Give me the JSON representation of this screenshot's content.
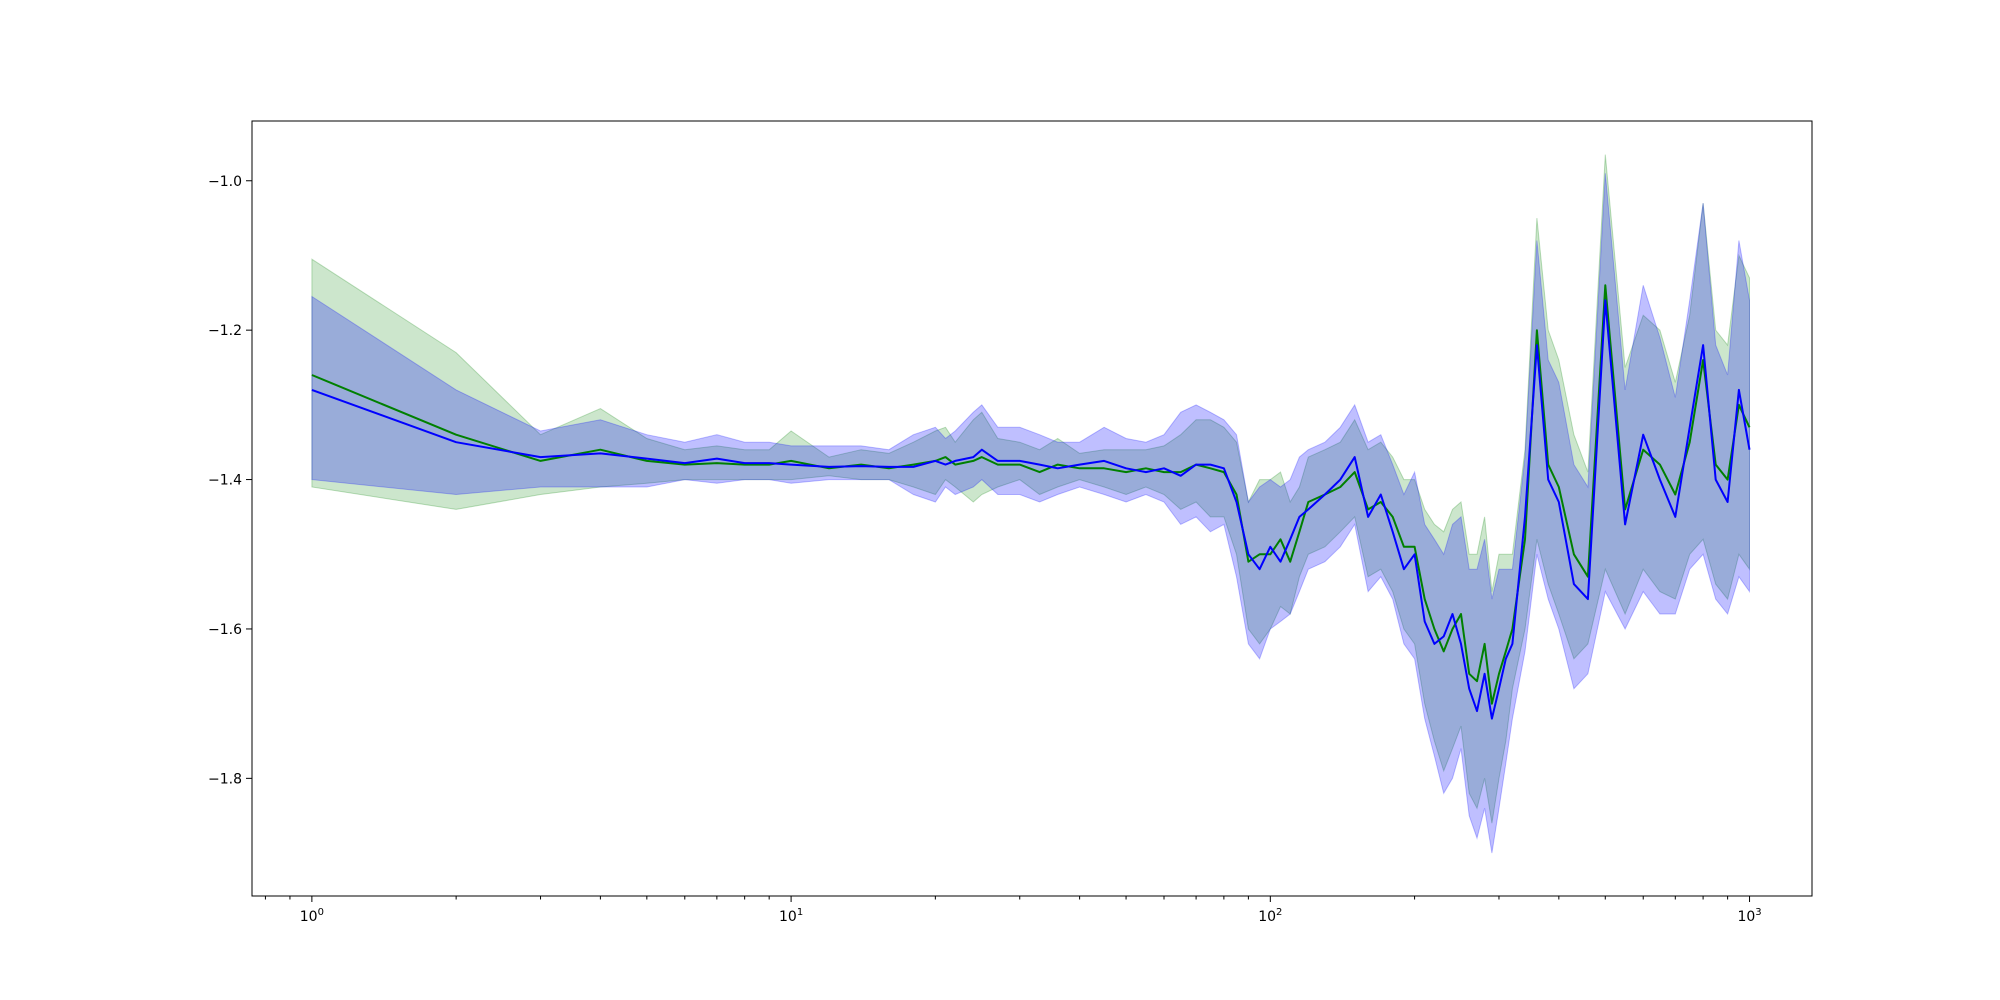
{
  "chart_data": {
    "type": "line",
    "title": "",
    "xlabel": "",
    "ylabel": "",
    "xscale": "log",
    "xlim": [
      0.75,
      1350
    ],
    "ylim": [
      -1.9575,
      -0.92
    ],
    "x_ticks": [
      {
        "value": 1,
        "base": "10",
        "exp": "0"
      },
      {
        "value": 10,
        "base": "10",
        "exp": "1"
      },
      {
        "value": 100,
        "base": "10",
        "exp": "2"
      },
      {
        "value": 1000,
        "base": "10",
        "exp": "3"
      }
    ],
    "y_ticks": [
      {
        "value": -1.0,
        "label": "−1.0"
      },
      {
        "value": -1.2,
        "label": "−1.2"
      },
      {
        "value": -1.4,
        "label": "−1.4"
      },
      {
        "value": -1.6,
        "label": "−1.6"
      },
      {
        "value": -1.8,
        "label": "−1.8"
      }
    ],
    "grid": false,
    "legend": "none",
    "colors": {
      "green": "#008000",
      "blue": "#0000ff",
      "green_band": "#008000",
      "blue_band": "#0000ff"
    },
    "series": [
      {
        "color": "#008000",
        "x": [
          1,
          2,
          3,
          4,
          5,
          6,
          7,
          8,
          9,
          10,
          12,
          14,
          16,
          18,
          20,
          21,
          22,
          24,
          25,
          27,
          30,
          33,
          36,
          40,
          45,
          50,
          55,
          60,
          65,
          70,
          75,
          80,
          85,
          90,
          95,
          100,
          105,
          110,
          115,
          120,
          130,
          140,
          150,
          160,
          170,
          180,
          190,
          200,
          210,
          220,
          230,
          240,
          250,
          260,
          270,
          280,
          290,
          300,
          310,
          320,
          340,
          360,
          380,
          400,
          430,
          460,
          500,
          550,
          600,
          650,
          700,
          750,
          800,
          850,
          900,
          950,
          1000
        ],
        "y": [
          -1.26,
          -1.34,
          -1.375,
          -1.36,
          -1.375,
          -1.38,
          -1.378,
          -1.38,
          -1.38,
          -1.375,
          -1.385,
          -1.38,
          -1.385,
          -1.38,
          -1.375,
          -1.37,
          -1.38,
          -1.375,
          -1.37,
          -1.38,
          -1.38,
          -1.39,
          -1.38,
          -1.385,
          -1.385,
          -1.39,
          -1.385,
          -1.39,
          -1.39,
          -1.38,
          -1.385,
          -1.39,
          -1.42,
          -1.51,
          -1.5,
          -1.5,
          -1.48,
          -1.51,
          -1.47,
          -1.43,
          -1.42,
          -1.41,
          -1.39,
          -1.44,
          -1.43,
          -1.45,
          -1.49,
          -1.49,
          -1.56,
          -1.6,
          -1.63,
          -1.6,
          -1.58,
          -1.66,
          -1.67,
          -1.62,
          -1.7,
          -1.66,
          -1.63,
          -1.6,
          -1.48,
          -1.2,
          -1.38,
          -1.41,
          -1.5,
          -1.53,
          -1.14,
          -1.44,
          -1.36,
          -1.38,
          -1.42,
          -1.35,
          -1.24,
          -1.38,
          -1.4,
          -1.3,
          -1.33
        ],
        "lower": [
          -1.41,
          -1.44,
          -1.42,
          -1.41,
          -1.405,
          -1.4,
          -1.4,
          -1.4,
          -1.4,
          -1.4,
          -1.395,
          -1.4,
          -1.4,
          -1.41,
          -1.42,
          -1.4,
          -1.41,
          -1.43,
          -1.42,
          -1.41,
          -1.4,
          -1.42,
          -1.41,
          -1.4,
          -1.41,
          -1.42,
          -1.41,
          -1.42,
          -1.44,
          -1.43,
          -1.45,
          -1.45,
          -1.5,
          -1.6,
          -1.62,
          -1.6,
          -1.57,
          -1.58,
          -1.53,
          -1.5,
          -1.49,
          -1.47,
          -1.45,
          -1.53,
          -1.52,
          -1.55,
          -1.6,
          -1.62,
          -1.7,
          -1.75,
          -1.79,
          -1.76,
          -1.73,
          -1.82,
          -1.84,
          -1.8,
          -1.86,
          -1.8,
          -1.75,
          -1.68,
          -1.6,
          -1.48,
          -1.54,
          -1.58,
          -1.64,
          -1.62,
          -1.52,
          -1.58,
          -1.52,
          -1.55,
          -1.56,
          -1.5,
          -1.48,
          -1.54,
          -1.56,
          -1.5,
          -1.52
        ],
        "upper": [
          -1.105,
          -1.23,
          -1.34,
          -1.305,
          -1.345,
          -1.36,
          -1.355,
          -1.36,
          -1.36,
          -1.335,
          -1.37,
          -1.36,
          -1.365,
          -1.35,
          -1.335,
          -1.33,
          -1.35,
          -1.32,
          -1.31,
          -1.345,
          -1.35,
          -1.36,
          -1.345,
          -1.365,
          -1.36,
          -1.36,
          -1.36,
          -1.355,
          -1.34,
          -1.32,
          -1.32,
          -1.33,
          -1.35,
          -1.43,
          -1.4,
          -1.4,
          -1.39,
          -1.43,
          -1.41,
          -1.37,
          -1.36,
          -1.35,
          -1.32,
          -1.36,
          -1.35,
          -1.37,
          -1.4,
          -1.4,
          -1.44,
          -1.46,
          -1.47,
          -1.44,
          -1.43,
          -1.5,
          -1.5,
          -1.45,
          -1.55,
          -1.5,
          -1.5,
          -1.5,
          -1.36,
          -1.05,
          -1.2,
          -1.24,
          -1.34,
          -1.39,
          -0.965,
          -1.25,
          -1.18,
          -1.2,
          -1.27,
          -1.18,
          -1.03,
          -1.2,
          -1.22,
          -1.1,
          -1.13
        ]
      },
      {
        "color": "#0000ff",
        "x": [
          1,
          2,
          3,
          4,
          5,
          6,
          7,
          8,
          9,
          10,
          12,
          14,
          16,
          18,
          20,
          21,
          22,
          24,
          25,
          27,
          30,
          33,
          36,
          40,
          45,
          50,
          55,
          60,
          65,
          70,
          75,
          80,
          85,
          90,
          95,
          100,
          105,
          110,
          115,
          120,
          130,
          140,
          150,
          160,
          170,
          180,
          190,
          200,
          210,
          220,
          230,
          240,
          250,
          260,
          270,
          280,
          290,
          300,
          310,
          320,
          340,
          360,
          380,
          400,
          430,
          460,
          500,
          550,
          600,
          650,
          700,
          750,
          800,
          850,
          900,
          950,
          1000
        ],
        "y": [
          -1.28,
          -1.35,
          -1.37,
          -1.365,
          -1.372,
          -1.378,
          -1.372,
          -1.378,
          -1.378,
          -1.38,
          -1.383,
          -1.382,
          -1.383,
          -1.383,
          -1.375,
          -1.38,
          -1.375,
          -1.37,
          -1.36,
          -1.375,
          -1.375,
          -1.38,
          -1.385,
          -1.38,
          -1.375,
          -1.385,
          -1.39,
          -1.385,
          -1.395,
          -1.38,
          -1.38,
          -1.385,
          -1.43,
          -1.5,
          -1.52,
          -1.49,
          -1.51,
          -1.48,
          -1.45,
          -1.44,
          -1.42,
          -1.4,
          -1.37,
          -1.45,
          -1.42,
          -1.47,
          -1.52,
          -1.5,
          -1.59,
          -1.62,
          -1.61,
          -1.58,
          -1.62,
          -1.68,
          -1.71,
          -1.66,
          -1.72,
          -1.68,
          -1.64,
          -1.62,
          -1.45,
          -1.22,
          -1.4,
          -1.43,
          -1.54,
          -1.56,
          -1.16,
          -1.46,
          -1.34,
          -1.4,
          -1.45,
          -1.33,
          -1.22,
          -1.4,
          -1.43,
          -1.28,
          -1.36
        ],
        "lower": [
          -1.4,
          -1.42,
          -1.41,
          -1.41,
          -1.41,
          -1.4,
          -1.405,
          -1.4,
          -1.4,
          -1.405,
          -1.4,
          -1.4,
          -1.4,
          -1.42,
          -1.43,
          -1.41,
          -1.42,
          -1.41,
          -1.4,
          -1.42,
          -1.42,
          -1.43,
          -1.42,
          -1.41,
          -1.42,
          -1.43,
          -1.42,
          -1.43,
          -1.46,
          -1.45,
          -1.47,
          -1.46,
          -1.53,
          -1.62,
          -1.64,
          -1.6,
          -1.59,
          -1.58,
          -1.55,
          -1.52,
          -1.51,
          -1.49,
          -1.46,
          -1.55,
          -1.53,
          -1.56,
          -1.62,
          -1.64,
          -1.72,
          -1.77,
          -1.82,
          -1.8,
          -1.76,
          -1.85,
          -1.88,
          -1.84,
          -1.9,
          -1.84,
          -1.78,
          -1.72,
          -1.63,
          -1.5,
          -1.56,
          -1.6,
          -1.68,
          -1.66,
          -1.55,
          -1.6,
          -1.55,
          -1.58,
          -1.58,
          -1.52,
          -1.5,
          -1.56,
          -1.58,
          -1.53,
          -1.55
        ],
        "upper": [
          -1.155,
          -1.28,
          -1.335,
          -1.32,
          -1.34,
          -1.35,
          -1.34,
          -1.35,
          -1.35,
          -1.355,
          -1.355,
          -1.355,
          -1.36,
          -1.34,
          -1.33,
          -1.345,
          -1.335,
          -1.31,
          -1.3,
          -1.33,
          -1.33,
          -1.34,
          -1.35,
          -1.35,
          -1.33,
          -1.345,
          -1.35,
          -1.34,
          -1.31,
          -1.3,
          -1.31,
          -1.32,
          -1.34,
          -1.43,
          -1.41,
          -1.4,
          -1.41,
          -1.4,
          -1.37,
          -1.36,
          -1.35,
          -1.33,
          -1.3,
          -1.35,
          -1.34,
          -1.38,
          -1.42,
          -1.39,
          -1.46,
          -1.48,
          -1.5,
          -1.46,
          -1.45,
          -1.52,
          -1.52,
          -1.48,
          -1.56,
          -1.52,
          -1.52,
          -1.52,
          -1.37,
          -1.08,
          -1.24,
          -1.27,
          -1.38,
          -1.41,
          -0.99,
          -1.28,
          -1.14,
          -1.21,
          -1.29,
          -1.16,
          -1.03,
          -1.22,
          -1.26,
          -1.08,
          -1.16
        ]
      }
    ]
  }
}
